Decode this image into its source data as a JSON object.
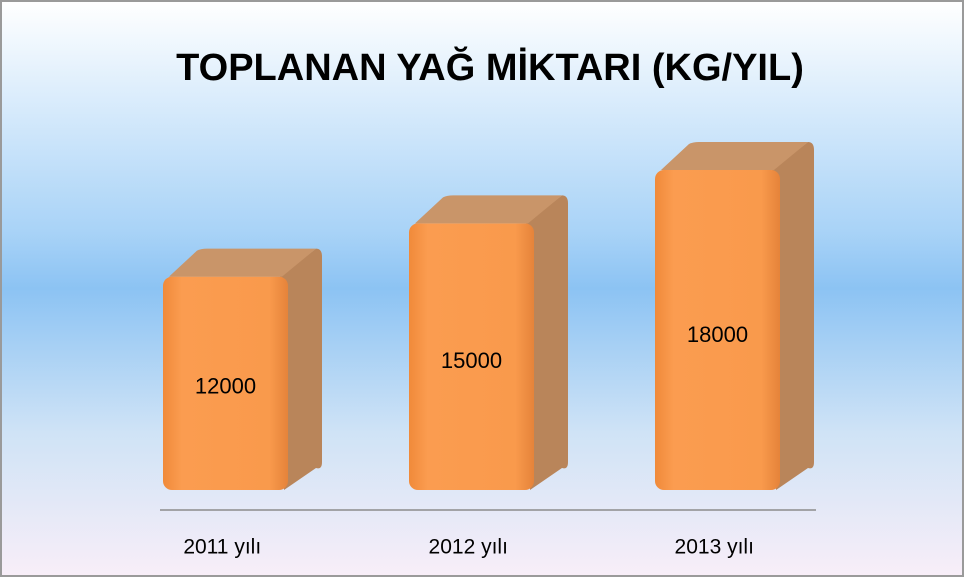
{
  "chart_data": {
    "type": "bar3d",
    "title": "TOPLANAN YAĞ MİKTARI (KG/YIL)",
    "categories": [
      "2011 yılı",
      "2012 yılı",
      "2013 yılı"
    ],
    "values": [
      12000,
      15000,
      18000
    ],
    "color": "#f79646"
  }
}
